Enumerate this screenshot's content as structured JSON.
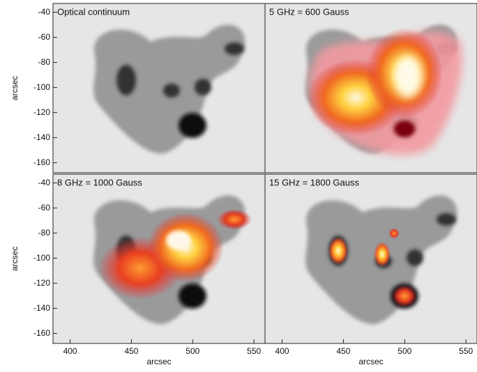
{
  "chart_data": [
    {
      "type": "image",
      "title": "Optical continuum",
      "ylabel": "arcsec",
      "ylim": [
        -168,
        -33
      ],
      "yticks": [
        -40,
        -60,
        -80,
        -100,
        -120,
        -140,
        -160
      ],
      "xlim": [
        386,
        559
      ]
    },
    {
      "type": "image",
      "title": "5 GHz = 600 Gauss",
      "ylim": [
        -168,
        -33
      ],
      "xlim": [
        386,
        559
      ]
    },
    {
      "type": "image",
      "title": "8 GHz = 1000 Gauss",
      "ylabel": "arcsec",
      "ylim": [
        -168,
        -33
      ],
      "yticks": [
        -40,
        -60,
        -80,
        -100,
        -120,
        -140,
        -160
      ],
      "xlabel": "arcsec",
      "xlim": [
        386,
        559
      ],
      "xticks": [
        400,
        450,
        500,
        550
      ]
    },
    {
      "type": "image",
      "title": "15 GHz = 1800 Gauss",
      "xlabel": "arcsec",
      "ylim": [
        -168,
        -33
      ],
      "xlim": [
        386,
        559
      ],
      "xticks": [
        400,
        450,
        500,
        550
      ]
    }
  ]
}
